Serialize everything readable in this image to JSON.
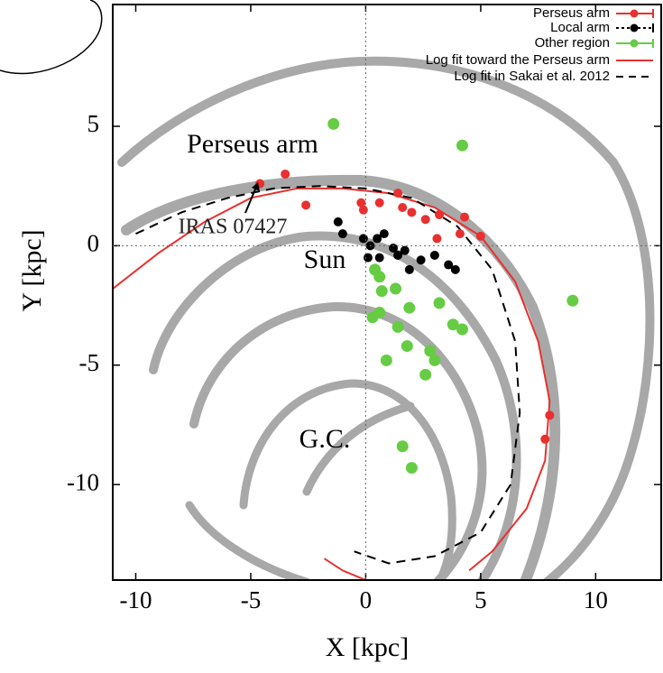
{
  "chart_data": {
    "type": "scatter",
    "xlabel": "X [kpc]",
    "ylabel": "Y [kpc]",
    "xlim": [
      -11,
      12.85
    ],
    "ylim": [
      -14,
      10.1
    ],
    "xticks": [
      -10,
      -5,
      0,
      5,
      10
    ],
    "yticks": [
      -10,
      -5,
      0,
      5
    ],
    "legend": "upper right",
    "annotations": [
      "Perseus arm",
      "IRAS 07427",
      "Sun",
      "G.C."
    ],
    "series": [
      {
        "name": "Perseus arm",
        "color": "#e8302f",
        "style": "points",
        "x": [
          -4.6,
          -3.5,
          -2.6,
          -0.2,
          -0.1,
          0.6,
          1.4,
          1.6,
          2.0,
          2.6,
          3.2,
          4.3,
          4.1,
          3.1,
          5.0,
          8.0,
          7.8
        ],
        "values": [
          2.6,
          3.0,
          1.7,
          1.8,
          1.5,
          1.8,
          2.2,
          1.6,
          1.4,
          1.1,
          1.3,
          1.2,
          0.5,
          0.3,
          0.4,
          -7.1,
          -8.1
        ]
      },
      {
        "name": "Local arm",
        "color": "#000000",
        "style": "points",
        "x": [
          -1.2,
          -1.0,
          -0.1,
          0.2,
          0.5,
          0.8,
          0.1,
          0.6,
          1.2,
          1.4,
          1.7,
          1.9,
          2.4,
          3.0,
          3.6,
          3.9
        ],
        "values": [
          1.0,
          0.5,
          0.3,
          0.0,
          0.3,
          0.5,
          -0.5,
          -0.5,
          -0.1,
          -0.4,
          -0.2,
          -1.0,
          -0.6,
          -0.4,
          -0.8,
          -1.0
        ]
      },
      {
        "name": "Other region",
        "color": "#66cc44",
        "style": "points",
        "x": [
          -1.4,
          4.2,
          9.0,
          0.4,
          0.6,
          0.7,
          1.3,
          0.6,
          0.3,
          1.4,
          1.9,
          3.2,
          3.8,
          4.2,
          1.8,
          2.8,
          3.0,
          0.9,
          2.6,
          1.6,
          2.0
        ],
        "values": [
          5.1,
          4.2,
          -2.3,
          -1.0,
          -1.3,
          -1.9,
          -1.8,
          -2.8,
          -3.0,
          -3.4,
          -2.6,
          -2.4,
          -3.3,
          -3.5,
          -4.2,
          -4.4,
          -4.8,
          -4.8,
          -5.4,
          -8.4,
          -9.3
        ]
      },
      {
        "name": "Log fit toward the Perseus arm",
        "color": "#e8302f",
        "style": "line",
        "x": [
          -11,
          -9,
          -7,
          -5,
          -3,
          -1,
          1,
          3,
          5,
          6.5,
          7.5,
          8,
          7.8,
          7,
          5.5,
          4.5,
          null,
          -1.8,
          -1,
          0
        ],
        "values": [
          -1.8,
          -0.3,
          1.0,
          2.0,
          2.4,
          2.4,
          2.2,
          1.6,
          0.4,
          -1.5,
          -4,
          -6.5,
          -9,
          -11,
          -12.8,
          -13.6,
          null,
          -13.1,
          -13.6,
          -14
        ]
      },
      {
        "name": "Log fit in Sakai et al. 2012",
        "color": "#000000",
        "style": "dashed",
        "x": [
          -10,
          -8,
          -6,
          -4,
          -2,
          0,
          2,
          4,
          5.5,
          6.5,
          6.7,
          6.3,
          5,
          3,
          1,
          -0.5
        ],
        "values": [
          0.5,
          1.4,
          2.0,
          2.4,
          2.5,
          2.4,
          2.0,
          0.8,
          -1,
          -4,
          -7,
          -10,
          -12,
          -13,
          -13.3,
          -12.8
        ]
      }
    ]
  }
}
